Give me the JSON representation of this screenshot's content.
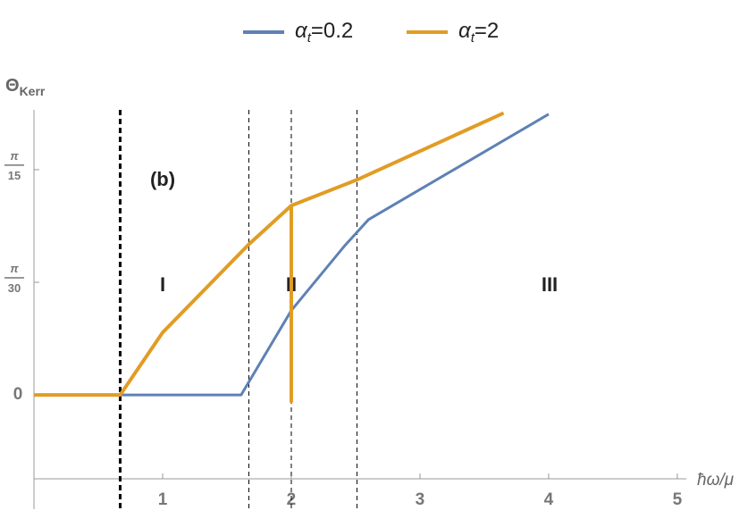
{
  "chart_data": {
    "type": "line",
    "xlabel": "ħω/μ",
    "ylabel": "ΘKerr",
    "xlim": [
      0,
      5.07
    ],
    "ylim": [
      -0.078,
      0.265
    ],
    "xticks": [
      1,
      2,
      3,
      4,
      5
    ],
    "yticks": [
      0,
      {
        "value": 0.10472,
        "label": "π/30"
      },
      {
        "value": 0.20944,
        "label": "π/15"
      }
    ],
    "vlines": [
      0.67,
      1.67,
      2,
      2.51
    ],
    "annotations": [
      "(b)",
      "I",
      "II",
      "III"
    ],
    "series": [
      {
        "name": "αt=0.2",
        "color": "#5e81b5",
        "x": [
          0,
          0.67,
          1.61,
          2,
          2.41,
          2.6,
          4
        ],
        "values": [
          0,
          0,
          0,
          0.0785,
          0.138,
          0.163,
          0.261
        ]
      },
      {
        "name": "αt=2",
        "color": "#e19c24",
        "x": [
          0,
          0.67,
          1,
          1.67,
          2,
          2,
          2,
          2.51,
          3.65
        ],
        "values": [
          0,
          0,
          0.058,
          0.14,
          0.176,
          -0.006,
          0.176,
          0.2,
          0.262
        ]
      }
    ]
  }
}
